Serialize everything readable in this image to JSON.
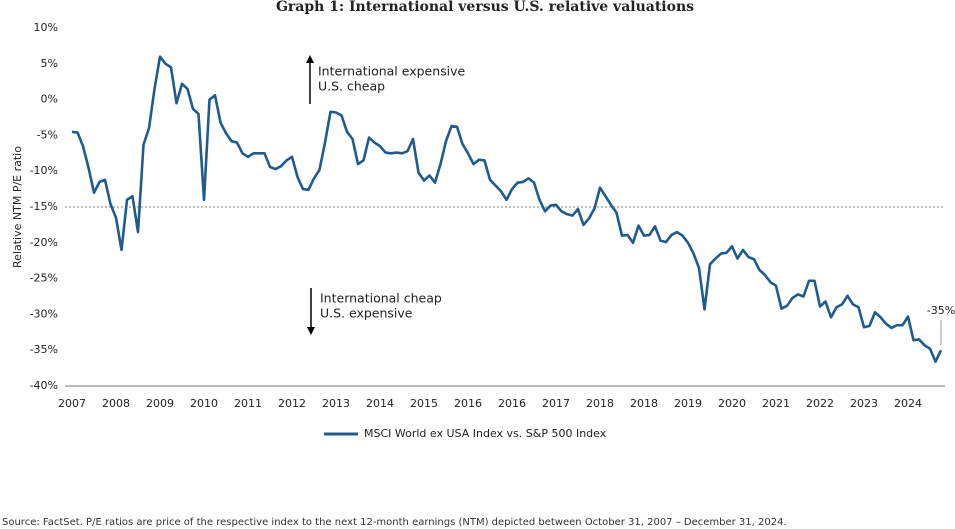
{
  "chart_data": {
    "type": "line",
    "title": "Graph 1: International versus U.S. relative valuations",
    "y_label": "Relative NTM P/E ratio",
    "categories": [
      "2007",
      null,
      null,
      null,
      null,
      null,
      null,
      null,
      "2008",
      null,
      null,
      null,
      null,
      null,
      null,
      null,
      "2009",
      null,
      null,
      null,
      null,
      null,
      null,
      null,
      "2010",
      null,
      null,
      null,
      null,
      null,
      null,
      null,
      "2011",
      null,
      null,
      null,
      null,
      null,
      null,
      null,
      "2012",
      null,
      null,
      null,
      null,
      null,
      null,
      null,
      "2013",
      null,
      null,
      null,
      null,
      null,
      null,
      null,
      "2014",
      null,
      null,
      null,
      null,
      null,
      null,
      null,
      "2015",
      null,
      null,
      null,
      null,
      null,
      null,
      null,
      "2016",
      null,
      null,
      null,
      null,
      null,
      null,
      null,
      "2016",
      null,
      null,
      null,
      null,
      null,
      null,
      null,
      "2017",
      null,
      null,
      null,
      null,
      null,
      null,
      null,
      "2018",
      null,
      null,
      null,
      null,
      null,
      null,
      null,
      "2018",
      null,
      null,
      null,
      null,
      null,
      null,
      null,
      "2019",
      null,
      null,
      null,
      null,
      null,
      null,
      null,
      "2020",
      null,
      null,
      null,
      null,
      null,
      null,
      null,
      "2021",
      null,
      null,
      null,
      null,
      null,
      null,
      null,
      "2022",
      null,
      null,
      null,
      null,
      null,
      null,
      null,
      "2023",
      null,
      null,
      null,
      null,
      null,
      null,
      null,
      "2024",
      null,
      null,
      null,
      null,
      null,
      null
    ],
    "series": [
      {
        "name": "MSCI World ex USA Index vs. S&P 500 Index",
        "color": "#1f5b8e",
        "values": [
          -4.5,
          -4.6,
          -6.5,
          -9.5,
          -13,
          -11.5,
          -11.2,
          -14.6,
          -16.5,
          -21,
          -14,
          -13.5,
          -18.5,
          -6.3,
          -4,
          1.5,
          6,
          5,
          4.5,
          -0.5,
          2.2,
          1.5,
          -1.3,
          -2,
          -14,
          0,
          0.6,
          -3.2,
          -4.7,
          -5.8,
          -6,
          -7.5,
          -8,
          -7.5,
          -7.5,
          -7.5,
          -9.4,
          -9.7,
          -9.3,
          -8.5,
          -8,
          -10.8,
          -12.5,
          -12.6,
          -11,
          -9.8,
          -6,
          -1.7,
          -1.8,
          -2.2,
          -4.5,
          -5.5,
          -9,
          -8.5,
          -5.3,
          -6,
          -6.5,
          -7.4,
          -7.5,
          -7.4,
          -7.5,
          -7.2,
          -5.5,
          -10.2,
          -11.3,
          -10.6,
          -11.6,
          -9,
          -5.8,
          -3.7,
          -3.8,
          -6.2,
          -7.5,
          -9,
          -8.4,
          -8.5,
          -11.2,
          -12,
          -12.8,
          -14,
          -12.5,
          -11.6,
          -11.5,
          -11,
          -11.6,
          -14,
          -15.6,
          -14.8,
          -14.7,
          -15.6,
          -16,
          -16.2,
          -15.3,
          -17.5,
          -16.6,
          -15.2,
          -12.3,
          -13.5,
          -14.7,
          -15.8,
          -19,
          -18.9,
          -20,
          -17.6,
          -19,
          -18.9,
          -17.7,
          -19.7,
          -19.9,
          -18.9,
          -18.5,
          -19,
          -20,
          -21.5,
          -23.5,
          -29.3,
          -23,
          -22.2,
          -21.5,
          -21.4,
          -20.5,
          -22.2,
          -21,
          -22,
          -22.3,
          -23.8,
          -24.5,
          -25.5,
          -26,
          -29.2,
          -28.8,
          -27.7,
          -27.2,
          -27.5,
          -25.3,
          -25.3,
          -28.9,
          -28.2,
          -30.4,
          -29,
          -28.6,
          -27.4,
          -28.6,
          -29,
          -31.8,
          -31.6,
          -29.7,
          -30.4,
          -31.3,
          -31.9,
          -31.5,
          -31.5,
          -30.3,
          -33.6,
          -33.5,
          -34.3,
          -34.8,
          -36.6,
          -35
        ],
        "value_labels": [
          null,
          null,
          null,
          null,
          null,
          null,
          null,
          null,
          null,
          null,
          null,
          null,
          null,
          null,
          null,
          null,
          null,
          null,
          null,
          null,
          null,
          null,
          null,
          null,
          null,
          null,
          null,
          null,
          null,
          null,
          null,
          null,
          null,
          null,
          null,
          null,
          null,
          null,
          null,
          null,
          null,
          null,
          null,
          null,
          null,
          null,
          null,
          null,
          null,
          null,
          null,
          null,
          null,
          null,
          null,
          null,
          null,
          null,
          null,
          null,
          null,
          null,
          null,
          null,
          null,
          null,
          null,
          null,
          null,
          null,
          null,
          null,
          null,
          null,
          null,
          null,
          null,
          null,
          null,
          null,
          null,
          null,
          null,
          null,
          null,
          null,
          null,
          null,
          null,
          null,
          null,
          null,
          null,
          null,
          null,
          null,
          null,
          null,
          null,
          null,
          null,
          null,
          null,
          null,
          null,
          null,
          null,
          null,
          null,
          null,
          null,
          null,
          null,
          null,
          null,
          null,
          null,
          null,
          null,
          null,
          null,
          null,
          null,
          null,
          null,
          null,
          null,
          null,
          null,
          null,
          null,
          null,
          null,
          null,
          null,
          null,
          null,
          null,
          null,
          null,
          null,
          null,
          null,
          null,
          null,
          null,
          null,
          null,
          null,
          null,
          null,
          null,
          null,
          null,
          null,
          null,
          null,
          null,
          "-35%"
        ]
      }
    ],
    "ylim": [
      -40,
      10
    ],
    "yticks": [
      {
        "value": 10,
        "label": "10%"
      },
      {
        "value": 5,
        "label": "5%"
      },
      {
        "value": 0,
        "label": "0%"
      },
      {
        "value": -5,
        "label": "-5%"
      },
      {
        "value": -10,
        "label": "-10%"
      },
      {
        "value": -15,
        "label": "-15%"
      },
      {
        "value": -20,
        "label": "-20%"
      },
      {
        "value": -25,
        "label": "-25%"
      },
      {
        "value": -30,
        "label": "-30%"
      },
      {
        "value": -35,
        "label": "-35%"
      },
      {
        "value": -40,
        "label": "-40%"
      }
    ],
    "grid": false,
    "reference_line": -15,
    "annotations": [
      [
        "International expensive",
        "U.S. cheap"
      ],
      [
        "International cheap",
        "U.S. expensive"
      ]
    ],
    "source": "Source: FactSet. P/E ratios are price of the respective index to the next 12-month earnings (NTM) depicted between October 31, 2007 – December 31, 2024."
  }
}
